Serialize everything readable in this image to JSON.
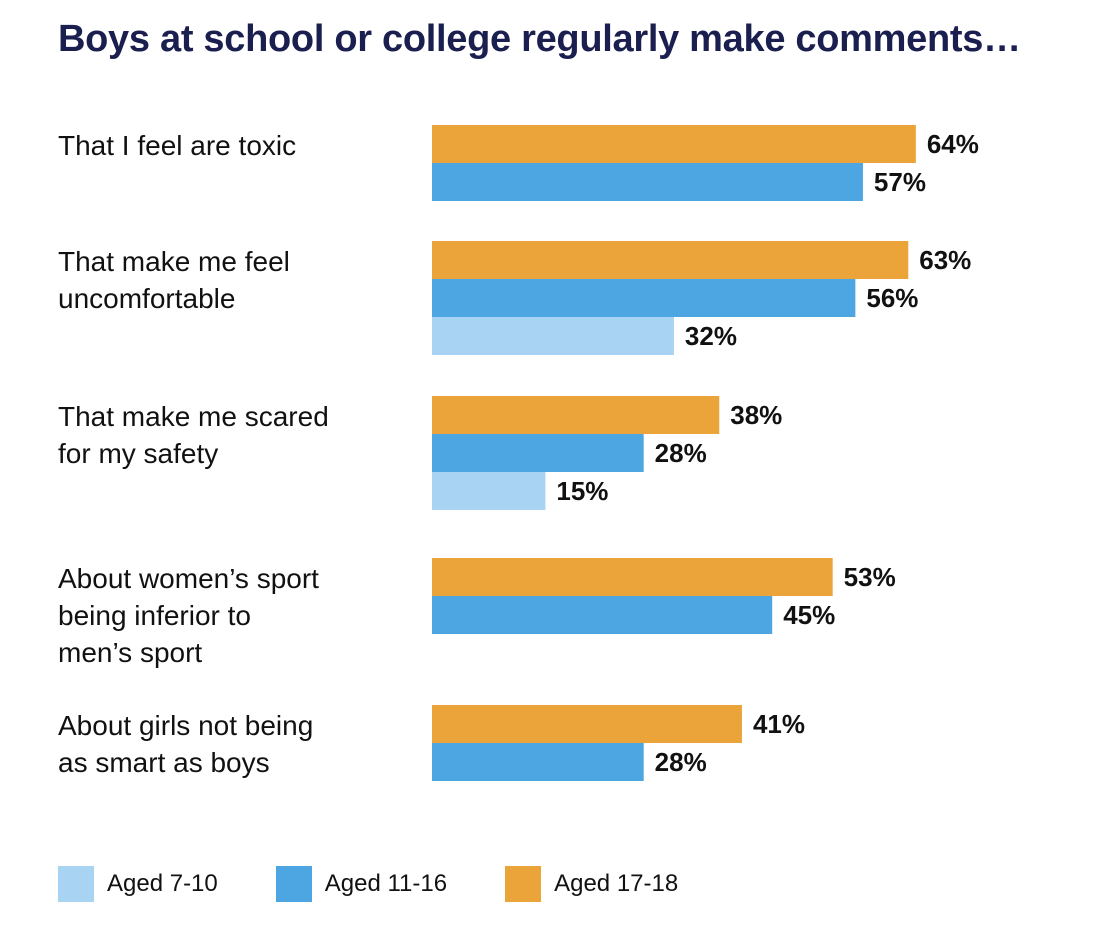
{
  "chart_data": {
    "type": "bar",
    "orientation": "horizontal",
    "title": "Boys at school or college regularly make comments…",
    "categories": [
      [
        "That I feel are toxic"
      ],
      [
        "That make me feel",
        "uncomfortable"
      ],
      [
        "That make me scared",
        "for my safety"
      ],
      [
        "About women’s sport",
        "being inferior to",
        "men’s sport"
      ],
      [
        "About girls not being",
        "as smart as boys"
      ]
    ],
    "series": [
      {
        "name": "Aged 17-18",
        "color": "#eba43a",
        "values": [
          64,
          63,
          38,
          53,
          41
        ]
      },
      {
        "name": "Aged 11-16",
        "color": "#4da6e2",
        "values": [
          57,
          56,
          28,
          45,
          28
        ]
      },
      {
        "name": "Aged 7-10",
        "color": "#a8d3f3",
        "values": [
          null,
          32,
          15,
          null,
          null
        ]
      }
    ],
    "value_suffix": "%",
    "xlim": [
      0,
      100
    ],
    "legend": {
      "placement": "bottom-left",
      "items": [
        {
          "name": "Aged 7-10",
          "color": "#a8d3f3"
        },
        {
          "name": "Aged 11-16",
          "color": "#4da6e2"
        },
        {
          "name": "Aged 17-18",
          "color": "#eba43a"
        }
      ]
    }
  }
}
